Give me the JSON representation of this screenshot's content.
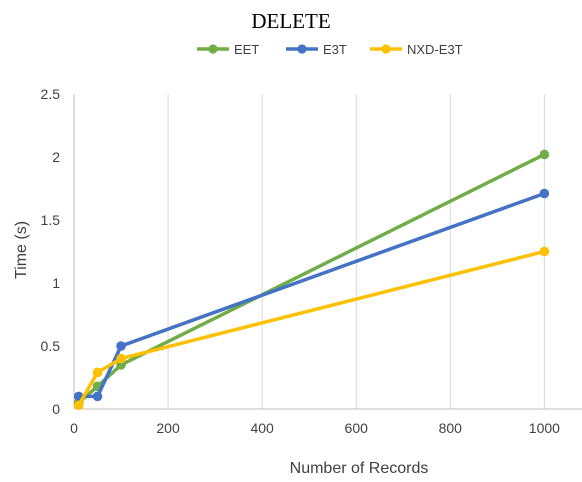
{
  "chart_data": {
    "type": "line",
    "title": "DELETE",
    "xlabel": "Number of Records",
    "ylabel": "Time (s)",
    "xlim": [
      0,
      1080
    ],
    "ylim": [
      0,
      2.5
    ],
    "xticks": [
      0,
      200,
      400,
      600,
      800,
      1000
    ],
    "yticks": [
      0,
      0.5,
      1,
      1.5,
      2,
      2.5
    ],
    "ytick_labels": [
      "0",
      "0.5",
      "1",
      "1.5",
      "2",
      "2.5"
    ],
    "grid": "vertical",
    "legend_position": "top",
    "series": [
      {
        "name": "EET",
        "color": "#70ad47",
        "x": [
          10,
          50,
          100,
          1000
        ],
        "y": [
          0.05,
          0.18,
          0.35,
          2.02
        ]
      },
      {
        "name": "E3T",
        "color": "#4472c4",
        "x": [
          10,
          50,
          100,
          1000
        ],
        "y": [
          0.1,
          0.1,
          0.5,
          1.71
        ]
      },
      {
        "name": "NXD-E3T",
        "color": "#ffc000",
        "x": [
          10,
          50,
          100,
          1000
        ],
        "y": [
          0.03,
          0.29,
          0.4,
          1.25
        ]
      }
    ]
  }
}
